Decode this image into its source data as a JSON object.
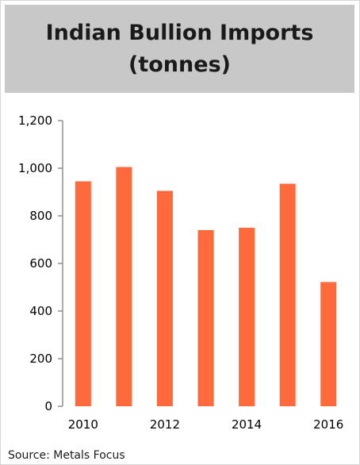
{
  "title": {
    "line1": "Indian Bullion Imports",
    "line2": "(tonnes)"
  },
  "source": "Source: Metals Focus",
  "chart_data": {
    "type": "bar",
    "title": "Indian Bullion Imports (tonnes)",
    "xlabel": "",
    "ylabel": "",
    "categories": [
      "2010",
      "2011",
      "2012",
      "2013",
      "2014",
      "2015",
      "2016"
    ],
    "values": [
      945,
      1005,
      905,
      740,
      750,
      935,
      522
    ],
    "x_tick_labels": [
      "2010",
      "",
      "2012",
      "",
      "2014",
      "",
      "2016"
    ],
    "y_ticks": [
      0,
      200,
      400,
      600,
      800,
      1000,
      1200
    ],
    "y_tick_labels": [
      "0",
      "200",
      "400",
      "600",
      "800",
      "1,000",
      "1,200"
    ],
    "ylim": [
      0,
      1200
    ],
    "grid": false,
    "bar_color": "#ff6a3d",
    "axis_color": "#7f7f7f"
  }
}
